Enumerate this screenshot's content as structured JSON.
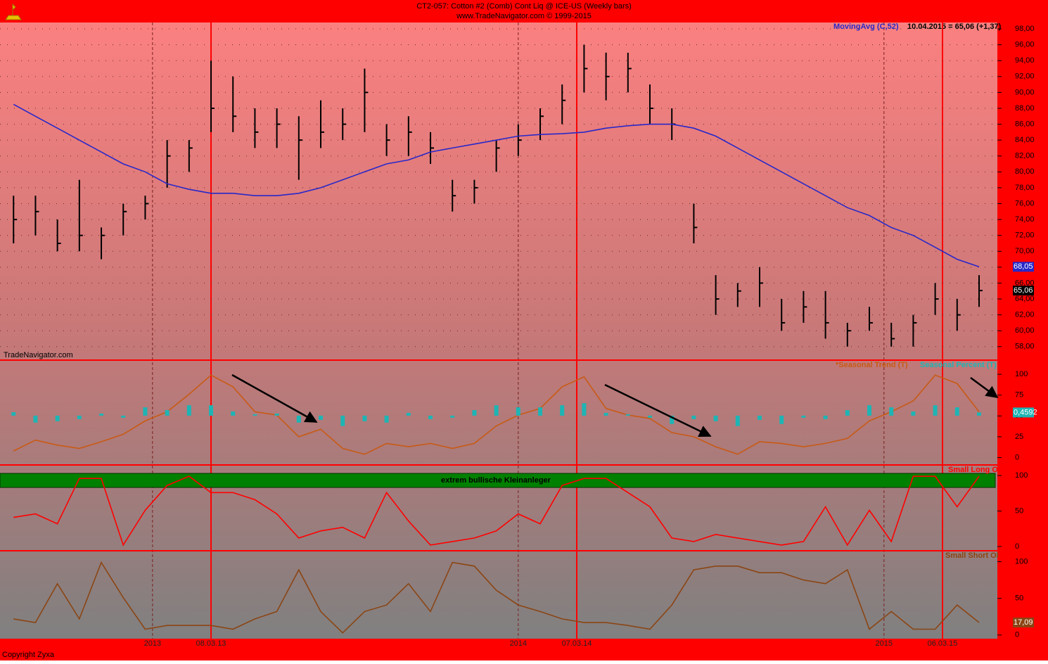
{
  "chart_data": [
    {
      "type": "hlc",
      "title": "CT2-057:  Cotton #2 (Comb) Cont Liq @ ICE-US  (Weekly bars)",
      "subtitle": "www.TradeNavigator.com © 1999-2015",
      "legend_text": "10.04.2015 = 65,06 (+1,37)",
      "watermark": "TradeNavigator.com",
      "footer": "Copyright Zyxa",
      "x": [
        2012.62,
        2012.68,
        2012.74,
        2012.8,
        2012.86,
        2012.92,
        2012.98,
        2013.04,
        2013.1,
        2013.16,
        2013.22,
        2013.28,
        2013.34,
        2013.4,
        2013.46,
        2013.52,
        2013.58,
        2013.64,
        2013.7,
        2013.76,
        2013.82,
        2013.88,
        2013.94,
        2014.0,
        2014.06,
        2014.12,
        2014.18,
        2014.24,
        2014.3,
        2014.36,
        2014.42,
        2014.48,
        2014.54,
        2014.6,
        2014.66,
        2014.72,
        2014.78,
        2014.84,
        2014.9,
        2014.96,
        2015.02,
        2015.08,
        2015.14,
        2015.2,
        2015.26
      ],
      "xlim": [
        2012.583,
        2015.31
      ],
      "xticks": [
        2013,
        2014,
        2015
      ],
      "markers": [
        {
          "value": 2013.16,
          "label": "08.03.13"
        },
        {
          "value": 2014.16,
          "label": "07.03.14"
        },
        {
          "value": 2015.16,
          "label": "06.03.15"
        }
      ],
      "marker_color": "#ff0000",
      "ylim": [
        56.3,
        98.8
      ],
      "yticks": [
        {
          "value": 58,
          "label": "58,00"
        },
        {
          "value": 60,
          "label": "60,00"
        },
        {
          "value": 62,
          "label": "62,00"
        },
        {
          "value": 64,
          "label": "64,00"
        },
        {
          "value": 66,
          "label": "66,00"
        },
        {
          "value": 68,
          "label": "68,00"
        },
        {
          "value": 70,
          "label": "70,00"
        },
        {
          "value": 72,
          "label": "72,00"
        },
        {
          "value": 74,
          "label": "74,00"
        },
        {
          "value": 76,
          "label": "76,00"
        },
        {
          "value": 78,
          "label": "78,00"
        },
        {
          "value": 80,
          "label": "80,00"
        },
        {
          "value": 82,
          "label": "82,00"
        },
        {
          "value": 84,
          "label": "84,00"
        },
        {
          "value": 86,
          "label": "86,00"
        },
        {
          "value": 88,
          "label": "88,00"
        },
        {
          "value": 90,
          "label": "90,00"
        },
        {
          "value": 92,
          "label": "92,00"
        },
        {
          "value": 94,
          "label": "94,00"
        },
        {
          "value": 96,
          "label": "96,00"
        },
        {
          "value": 98,
          "label": "98,00"
        }
      ],
      "grid": true,
      "color": "#000000",
      "high": [
        77,
        77,
        74,
        79,
        73,
        76,
        77,
        84,
        84,
        94,
        92,
        88,
        88,
        87,
        89,
        88,
        93,
        86,
        87,
        85,
        79,
        79,
        84,
        86,
        88,
        91,
        96,
        95,
        95,
        91,
        88,
        76,
        67,
        66,
        68,
        64,
        65,
        65,
        61,
        63,
        61,
        62,
        66,
        64,
        67
      ],
      "low": [
        71,
        72,
        70,
        70,
        69,
        72,
        74,
        78,
        80,
        85,
        85,
        83,
        83,
        79,
        83,
        84,
        85,
        82,
        82,
        81,
        75,
        76,
        80,
        82,
        84,
        86,
        90,
        89,
        90,
        86,
        84,
        71,
        62,
        63,
        63,
        60,
        61,
        59,
        58,
        60,
        58,
        58,
        62,
        60,
        63
      ],
      "close": [
        74,
        75,
        71,
        72,
        72,
        75,
        76,
        82,
        83,
        88,
        87,
        85,
        86,
        84,
        85,
        86,
        90,
        84,
        85,
        83,
        77,
        78,
        83,
        84,
        87,
        89,
        93,
        92,
        93,
        88,
        86,
        73,
        64,
        65,
        66,
        61,
        63,
        61,
        60,
        61,
        59,
        61,
        64,
        62,
        65.06
      ],
      "last_value_label": "65,06",
      "series": [
        {
          "name": "MovingAvg (C,52)",
          "color": "#2828c8",
          "last_value_label": "68,05",
          "values": [
            88.5,
            87,
            85.5,
            84,
            82.5,
            81,
            80,
            78.5,
            77.8,
            77.3,
            77.3,
            77,
            77,
            77.3,
            78,
            79,
            80,
            81,
            81.5,
            82.5,
            83,
            83.5,
            84,
            84.5,
            84.7,
            84.8,
            85,
            85.5,
            85.8,
            86,
            86,
            85.5,
            84.5,
            83,
            81.5,
            80,
            78.5,
            77,
            75.5,
            74.5,
            73,
            72,
            70.5,
            69,
            68.05
          ]
        }
      ]
    },
    {
      "type": "line",
      "ylim": [
        -8,
        117
      ],
      "yticks": [
        0,
        25,
        50,
        75,
        100
      ],
      "y2lim": [
        -7,
        8
      ],
      "series": [
        {
          "name": "*Seasonal Trend (T)",
          "color": "#c85a14",
          "values": [
            8,
            21,
            15,
            11,
            19,
            28,
            44,
            55,
            76,
            99,
            85,
            55,
            51,
            25,
            34,
            11,
            4,
            17,
            13,
            17,
            11,
            17,
            38,
            51,
            59,
            85,
            97,
            59,
            51,
            47,
            30,
            25,
            13,
            4,
            19,
            17,
            13,
            17,
            23,
            44,
            55,
            68,
            99,
            89,
            55
          ]
        },
        {
          "name": "Seasonal Percent (T)",
          "type": "bar",
          "axis": "y2",
          "color": "#1eb4b4",
          "last_value_label": "0,4592",
          "values": [
            0.5,
            -1.0,
            -0.8,
            -0.5,
            0.3,
            -0.3,
            1.2,
            0.8,
            1.5,
            1.5,
            0.6,
            0.2,
            0.3,
            -1.0,
            -0.6,
            -1.5,
            -0.8,
            -1.0,
            0.4,
            -0.5,
            -0.3,
            0.8,
            1.5,
            1.2,
            1.2,
            1.5,
            1.8,
            0.4,
            0.2,
            -0.3,
            -1.2,
            -0.5,
            -0.8,
            -1.5,
            -0.6,
            -1.2,
            -0.3,
            -0.5,
            0.8,
            1.5,
            1.2,
            0.6,
            1.5,
            1.2,
            0.4592
          ]
        }
      ]
    },
    {
      "type": "line",
      "ylim": [
        -5,
        114
      ],
      "yticks": [
        0,
        50,
        100
      ],
      "annotation": {
        "text": "extrem bullische Kleinanleger",
        "color": "#008000"
      },
      "series": [
        {
          "name": "Small Long OI",
          "color": "#ff0000",
          "values": [
            41,
            46,
            32,
            96,
            96,
            2,
            51,
            86,
            99,
            76,
            76,
            66,
            46,
            12,
            22,
            27,
            12,
            76,
            36,
            2,
            7,
            12,
            22,
            46,
            32,
            86,
            96,
            96,
            76,
            56,
            12,
            7,
            17,
            12,
            7,
            2,
            7,
            56,
            2,
            51,
            7,
            99,
            99,
            56,
            99
          ]
        }
      ]
    },
    {
      "type": "line",
      "ylim": [
        -5,
        114
      ],
      "yticks": [
        0,
        50,
        100
      ],
      "series": [
        {
          "name": "Small Short OI",
          "color": "#8b4513",
          "last_value_label": "17,09",
          "values": [
            22,
            17,
            70,
            22,
            99,
            51,
            8,
            13,
            13,
            13,
            8,
            22,
            32,
            89,
            32,
            3,
            32,
            41,
            70,
            32,
            99,
            94,
            61,
            41,
            32,
            22,
            17,
            17,
            13,
            8,
            41,
            89,
            94,
            94,
            85,
            85,
            75,
            70,
            89,
            8,
            32,
            8,
            8,
            41,
            17.09
          ]
        }
      ]
    }
  ]
}
